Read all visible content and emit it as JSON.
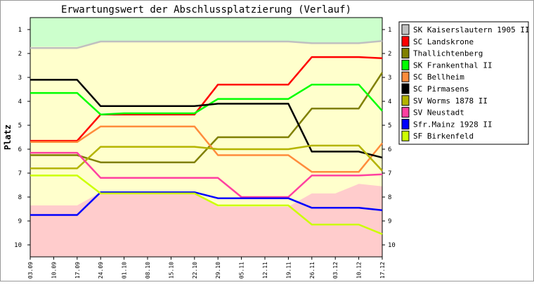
{
  "chart_data": {
    "type": "line",
    "title": "Erwartungswert der Abschlussplatzierung (Verlauf)",
    "ylabel": "Platz",
    "xlabel": "",
    "ylim": [
      10.5,
      0.5
    ],
    "y_ticks": [
      "1",
      "2",
      "3",
      "4",
      "5",
      "6",
      "7",
      "8",
      "9",
      "10"
    ],
    "x": [
      "03.09",
      "10.09",
      "17.09",
      "24.09",
      "01.10",
      "08.10",
      "15.10",
      "22.10",
      "29.10",
      "05.11",
      "12.11",
      "19.11",
      "26.11",
      "03.12",
      "10.12",
      "17.12"
    ],
    "zones": [
      {
        "name": "promotion",
        "color": "#ccffcc",
        "upper": [
          1.72,
          1.72,
          1.72,
          1.47,
          1.47,
          1.47,
          1.47,
          1.47,
          1.47,
          1.47,
          1.47,
          1.47,
          1.55,
          1.55,
          1.55,
          1.45
        ]
      },
      {
        "name": "relegation",
        "color": "#ffcccc",
        "lower": [
          8.35,
          8.35,
          8.35,
          7.8,
          7.8,
          7.8,
          7.8,
          7.8,
          8.4,
          8.4,
          8.4,
          8.4,
          7.85,
          7.85,
          7.45,
          7.55
        ]
      }
    ],
    "middle_color": "#ffffcc",
    "series": [
      {
        "name": "SK Kaiserslautern 1905   II",
        "color": "#c0c0c0",
        "values": [
          1.77,
          1.77,
          1.77,
          1.5,
          1.5,
          1.5,
          1.5,
          1.5,
          1.5,
          1.5,
          1.5,
          1.5,
          1.57,
          1.57,
          1.57,
          1.48
        ]
      },
      {
        "name": "SC Landskrone",
        "color": "#ff0000",
        "values": [
          5.65,
          5.65,
          5.65,
          4.55,
          4.55,
          4.55,
          4.55,
          4.55,
          3.3,
          3.3,
          3.3,
          3.3,
          2.15,
          2.15,
          2.15,
          2.2
        ]
      },
      {
        "name": "Thallichtenberg",
        "color": "#808000",
        "values": [
          6.25,
          6.25,
          6.25,
          6.55,
          6.55,
          6.55,
          6.55,
          6.55,
          5.5,
          5.5,
          5.5,
          5.5,
          4.3,
          4.3,
          4.3,
          2.8
        ]
      },
      {
        "name": "SK Frankenthal II",
        "color": "#00ff00",
        "values": [
          3.65,
          3.65,
          3.65,
          4.55,
          4.5,
          4.5,
          4.5,
          4.5,
          3.9,
          3.9,
          3.9,
          3.9,
          3.3,
          3.3,
          3.3,
          4.4
        ]
      },
      {
        "name": "SC Bellheim",
        "color": "#ff8c3c",
        "values": [
          5.7,
          5.7,
          5.7,
          5.05,
          5.05,
          5.05,
          5.05,
          5.05,
          6.25,
          6.25,
          6.25,
          6.25,
          6.95,
          6.95,
          6.95,
          5.75
        ]
      },
      {
        "name": "SC Pirmasens",
        "color": "#000000",
        "values": [
          3.1,
          3.1,
          3.1,
          4.2,
          4.2,
          4.2,
          4.2,
          4.2,
          4.1,
          4.1,
          4.1,
          4.1,
          6.1,
          6.1,
          6.1,
          6.35
        ]
      },
      {
        "name": "SV Worms 1878   II",
        "color": "#b4b400",
        "values": [
          6.8,
          6.8,
          6.8,
          5.9,
          5.9,
          5.9,
          5.9,
          5.9,
          6.0,
          6.0,
          6.0,
          6.0,
          5.85,
          5.85,
          5.85,
          6.9
        ]
      },
      {
        "name": "SV Neustadt",
        "color": "#ff40a0",
        "values": [
          6.15,
          6.15,
          6.15,
          7.2,
          7.2,
          7.2,
          7.2,
          7.2,
          7.2,
          8.0,
          8.0,
          8.0,
          7.1,
          7.1,
          7.1,
          7.05
        ]
      },
      {
        "name": "Sfr.Mainz 1928   II",
        "color": "#0000ff",
        "values": [
          8.75,
          8.75,
          8.75,
          7.8,
          7.8,
          7.8,
          7.8,
          7.8,
          8.05,
          8.05,
          8.05,
          8.05,
          8.45,
          8.45,
          8.45,
          8.55
        ]
      },
      {
        "name": "SF Birkenfeld",
        "color": "#ccff00",
        "values": [
          7.1,
          7.1,
          7.1,
          7.85,
          7.85,
          7.85,
          7.85,
          7.85,
          8.35,
          8.35,
          8.35,
          8.35,
          9.15,
          9.15,
          9.15,
          9.55
        ]
      }
    ],
    "grid": false,
    "legend_placement": "right"
  }
}
